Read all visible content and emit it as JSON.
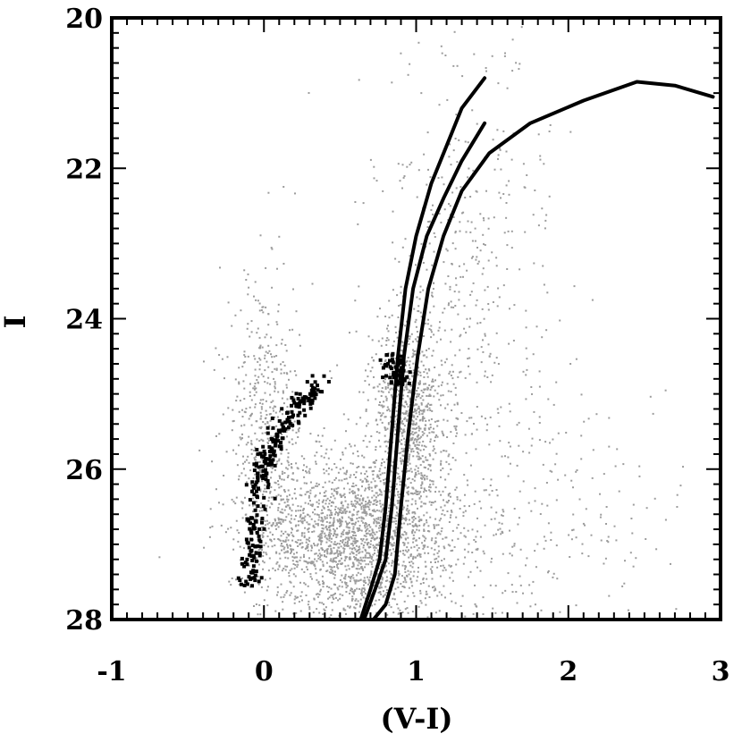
{
  "chart_data": {
    "type": "scatter",
    "title": "",
    "xlabel": "(V-I)",
    "ylabel": "I",
    "xlim": [
      -1,
      3
    ],
    "ylim": [
      28,
      20
    ],
    "y_inverted": true,
    "grid": false,
    "x_ticks": [
      -1,
      0,
      1,
      2,
      3
    ],
    "x_tick_labels": [
      "-1",
      "0",
      "1",
      "2",
      "3"
    ],
    "y_ticks": [
      20,
      22,
      24,
      26,
      28
    ],
    "y_tick_labels": [
      "20",
      "22",
      "24",
      "26",
      "28"
    ],
    "colors": {
      "field_stars": "#9c9c9c",
      "selected_stars": "#000000",
      "isochrones": "#000000"
    },
    "series": [
      {
        "kind": "scatter",
        "role": "field-stars",
        "density_regions": [
          {
            "center": [
              0.6,
              26.9
            ],
            "spread": [
              0.32,
              0.55
            ],
            "weight": 0.5
          },
          {
            "center": [
              0.95,
              25.2
            ],
            "spread": [
              0.13,
              0.6
            ],
            "weight": 0.18
          },
          {
            "center": [
              0.0,
              25.4
            ],
            "spread": [
              0.12,
              0.9
            ],
            "weight": 0.12
          },
          {
            "center": [
              1.3,
              23.2
            ],
            "spread": [
              0.28,
              1.5
            ],
            "weight": 0.1
          },
          {
            "center": [
              1.5,
              26.5
            ],
            "spread": [
              0.6,
              1.0
            ],
            "weight": 0.1
          }
        ]
      },
      {
        "kind": "scatter",
        "role": "blue-plume-stars",
        "ridge": [
          [
            -0.1,
            27.5
          ],
          [
            -0.07,
            26.8
          ],
          [
            -0.02,
            26.0
          ],
          [
            0.08,
            25.5
          ],
          [
            0.2,
            25.2
          ],
          [
            0.38,
            24.8
          ]
        ]
      },
      {
        "kind": "scatter",
        "role": "red-clump-stars",
        "ridge": [
          [
            0.82,
            24.5
          ],
          [
            0.9,
            24.8
          ]
        ]
      },
      {
        "kind": "line",
        "role": "isochrone-1",
        "points": [
          [
            0.62,
            28.1
          ],
          [
            0.7,
            27.6
          ],
          [
            0.76,
            27.2
          ],
          [
            0.8,
            26.5
          ],
          [
            0.84,
            25.5
          ],
          [
            0.88,
            24.5
          ],
          [
            0.93,
            23.6
          ],
          [
            1.0,
            22.9
          ],
          [
            1.1,
            22.2
          ],
          [
            1.2,
            21.7
          ],
          [
            1.3,
            21.2
          ],
          [
            1.45,
            20.8
          ]
        ]
      },
      {
        "kind": "line",
        "role": "isochrone-2",
        "points": [
          [
            0.64,
            28.1
          ],
          [
            0.73,
            27.6
          ],
          [
            0.8,
            27.2
          ],
          [
            0.84,
            26.5
          ],
          [
            0.88,
            25.5
          ],
          [
            0.92,
            24.5
          ],
          [
            0.98,
            23.6
          ],
          [
            1.07,
            22.9
          ],
          [
            1.18,
            22.4
          ],
          [
            1.3,
            21.9
          ],
          [
            1.45,
            21.4
          ]
        ]
      },
      {
        "kind": "line",
        "role": "isochrone-3",
        "points": [
          [
            0.68,
            28.1
          ],
          [
            0.8,
            27.8
          ],
          [
            0.86,
            27.4
          ],
          [
            0.9,
            26.5
          ],
          [
            0.95,
            25.5
          ],
          [
            1.01,
            24.5
          ],
          [
            1.08,
            23.6
          ],
          [
            1.18,
            22.9
          ],
          [
            1.3,
            22.3
          ],
          [
            1.48,
            21.8
          ],
          [
            1.75,
            21.4
          ],
          [
            2.1,
            21.1
          ],
          [
            2.45,
            20.85
          ],
          [
            2.7,
            20.9
          ],
          [
            2.95,
            21.05
          ]
        ]
      }
    ]
  }
}
